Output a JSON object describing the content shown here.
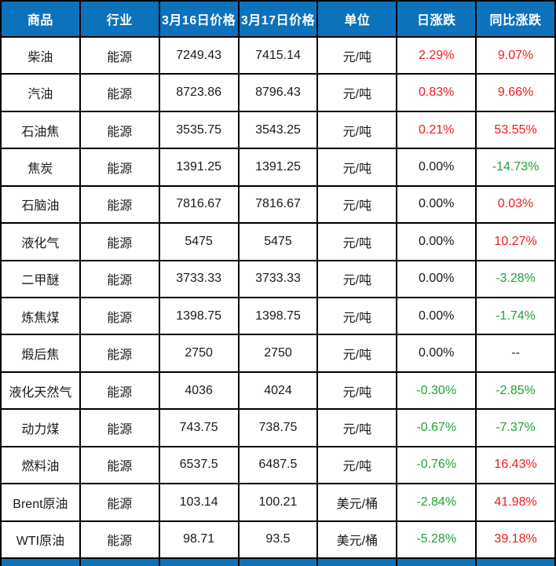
{
  "palette": {
    "header_bg": "#0C72BC",
    "header_text": "#FFFFFF",
    "up": "#EE1C1C",
    "down": "#21A038",
    "neutral": "#1A1A1A",
    "border": "#000000"
  },
  "table": {
    "columns": [
      {
        "key": "name",
        "label": "商品"
      },
      {
        "key": "industry",
        "label": "行业"
      },
      {
        "key": "price_0316",
        "label": "3月16日价格"
      },
      {
        "key": "price_0317",
        "label": "3月17日价格"
      },
      {
        "key": "unit",
        "label": "单位"
      },
      {
        "key": "day_change",
        "label": "日涨跌"
      },
      {
        "key": "yoy_change",
        "label": "同比涨跌"
      }
    ],
    "rows": [
      {
        "name": "柴油",
        "industry": "能源",
        "price_0316": "7249.43",
        "price_0317": "7415.14",
        "unit": "元/吨",
        "day_change": "2.29%",
        "day_dir": "up",
        "yoy_change": "9.07%",
        "yoy_dir": "up"
      },
      {
        "name": "汽油",
        "industry": "能源",
        "price_0316": "8723.86",
        "price_0317": "8796.43",
        "unit": "元/吨",
        "day_change": "0.83%",
        "day_dir": "up",
        "yoy_change": "9.66%",
        "yoy_dir": "up"
      },
      {
        "name": "石油焦",
        "industry": "能源",
        "price_0316": "3535.75",
        "price_0317": "3543.25",
        "unit": "元/吨",
        "day_change": "0.21%",
        "day_dir": "up",
        "yoy_change": "53.55%",
        "yoy_dir": "up"
      },
      {
        "name": "焦炭",
        "industry": "能源",
        "price_0316": "1391.25",
        "price_0317": "1391.25",
        "unit": "元/吨",
        "day_change": "0.00%",
        "day_dir": "neutral",
        "yoy_change": "-14.73%",
        "yoy_dir": "down"
      },
      {
        "name": "石脑油",
        "industry": "能源",
        "price_0316": "7816.67",
        "price_0317": "7816.67",
        "unit": "元/吨",
        "day_change": "0.00%",
        "day_dir": "neutral",
        "yoy_change": "0.03%",
        "yoy_dir": "up"
      },
      {
        "name": "液化气",
        "industry": "能源",
        "price_0316": "5475",
        "price_0317": "5475",
        "unit": "元/吨",
        "day_change": "0.00%",
        "day_dir": "neutral",
        "yoy_change": "10.27%",
        "yoy_dir": "up"
      },
      {
        "name": "二甲醚",
        "industry": "能源",
        "price_0316": "3733.33",
        "price_0317": "3733.33",
        "unit": "元/吨",
        "day_change": "0.00%",
        "day_dir": "neutral",
        "yoy_change": "-3.28%",
        "yoy_dir": "down"
      },
      {
        "name": "炼焦煤",
        "industry": "能源",
        "price_0316": "1398.75",
        "price_0317": "1398.75",
        "unit": "元/吨",
        "day_change": "0.00%",
        "day_dir": "neutral",
        "yoy_change": "-1.74%",
        "yoy_dir": "down"
      },
      {
        "name": "煅后焦",
        "industry": "能源",
        "price_0316": "2750",
        "price_0317": "2750",
        "unit": "元/吨",
        "day_change": "0.00%",
        "day_dir": "neutral",
        "yoy_change": "--",
        "yoy_dir": "neutral"
      },
      {
        "name": "液化天然气",
        "industry": "能源",
        "price_0316": "4036",
        "price_0317": "4024",
        "unit": "元/吨",
        "day_change": "-0.30%",
        "day_dir": "down",
        "yoy_change": "-2.85%",
        "yoy_dir": "down"
      },
      {
        "name": "动力煤",
        "industry": "能源",
        "price_0316": "743.75",
        "price_0317": "738.75",
        "unit": "元/吨",
        "day_change": "-0.67%",
        "day_dir": "down",
        "yoy_change": "-7.37%",
        "yoy_dir": "down"
      },
      {
        "name": "燃料油",
        "industry": "能源",
        "price_0316": "6537.5",
        "price_0317": "6487.5",
        "unit": "元/吨",
        "day_change": "-0.76%",
        "day_dir": "down",
        "yoy_change": "16.43%",
        "yoy_dir": "up"
      },
      {
        "name": "Brent原油",
        "industry": "能源",
        "price_0316": "103.14",
        "price_0317": "100.21",
        "unit": "美元/桶",
        "day_change": "-2.84%",
        "day_dir": "down",
        "yoy_change": "41.98%",
        "yoy_dir": "up"
      },
      {
        "name": "WTI原油",
        "industry": "能源",
        "price_0316": "98.71",
        "price_0317": "93.5",
        "unit": "美元/桶",
        "day_change": "-5.28%",
        "day_dir": "down",
        "yoy_change": "39.18%",
        "yoy_dir": "up"
      }
    ]
  }
}
